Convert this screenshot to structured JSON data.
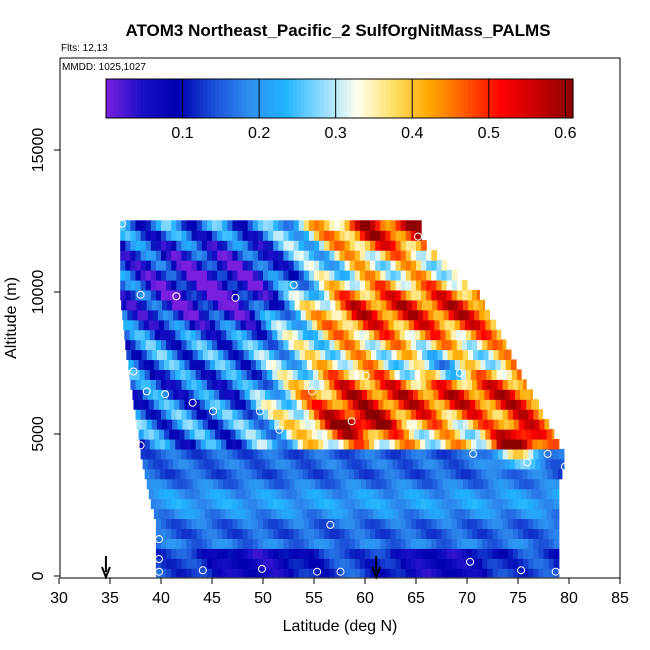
{
  "chart_data": {
    "type": "heatmap",
    "title": "ATOM3 Northeast_Pacific_2 SulfOrgNitMass_PALMS",
    "flights_text": "Flts: 12,13",
    "dates_text": "MMDD: 1025,1027",
    "xlabel": "Latitude (deg N)",
    "ylabel": "Altitude (m)",
    "xlim": [
      30,
      85
    ],
    "ylim": [
      0,
      17500
    ],
    "xticks": [
      30,
      35,
      40,
      45,
      50,
      55,
      60,
      65,
      70,
      75,
      80,
      85
    ],
    "yticks": [
      0,
      5000,
      10000,
      15000
    ],
    "colorbar": {
      "range": [
        0.0,
        0.61
      ],
      "ticks": [
        0.1,
        0.2,
        0.3,
        0.4,
        0.5,
        0.6
      ],
      "tick_labels": [
        "0.1",
        "0.2",
        "0.3",
        "0.4",
        "0.5",
        "0.6"
      ],
      "colors": [
        "#7a1fe0",
        "#1a10c8",
        "#0000b0",
        "#1a4fd8",
        "#2f8ff0",
        "#1fb4ff",
        "#8fdcff",
        "#ffffee",
        "#ffe066",
        "#ffa800",
        "#ff5a00",
        "#ff0000",
        "#c80000",
        "#8b0000"
      ]
    },
    "altitude_bands_m": [
      150,
      450,
      800,
      1150,
      1500,
      1850,
      2200,
      2550,
      2900,
      3250,
      3600,
      3950,
      4300,
      4650,
      5000,
      5350,
      5700,
      6050,
      6400,
      6750,
      7100,
      7450,
      7800,
      8150,
      8500,
      8850,
      9200,
      9550,
      9900,
      10250,
      10600,
      10950,
      11300,
      11650,
      12000,
      12350
    ],
    "band_lat_range_deg": [
      [
        39.5,
        79.0
      ],
      [
        39.5,
        79.0
      ],
      [
        39.5,
        79.0
      ],
      [
        39.5,
        79.0
      ],
      [
        39.5,
        79.0
      ],
      [
        39.5,
        79.0
      ],
      [
        39.3,
        79.0
      ],
      [
        39.0,
        79.0
      ],
      [
        38.8,
        79.0
      ],
      [
        38.6,
        79.0
      ],
      [
        38.4,
        79.3
      ],
      [
        38.2,
        79.5
      ],
      [
        38.0,
        79.5
      ],
      [
        37.9,
        79.0
      ],
      [
        37.8,
        78.5
      ],
      [
        37.6,
        78.0
      ],
      [
        37.5,
        77.4
      ],
      [
        37.3,
        77.0
      ],
      [
        37.2,
        76.4
      ],
      [
        37.0,
        75.8
      ],
      [
        36.9,
        75.3
      ],
      [
        36.8,
        74.8
      ],
      [
        36.6,
        74.3
      ],
      [
        36.5,
        73.8
      ],
      [
        36.4,
        73.3
      ],
      [
        36.3,
        72.8
      ],
      [
        36.2,
        72.2
      ],
      [
        36.1,
        71.7
      ],
      [
        36.0,
        71.2
      ],
      [
        36.0,
        70.0
      ],
      [
        36.0,
        69.0
      ],
      [
        36.0,
        68.0
      ],
      [
        36.0,
        67.0
      ],
      [
        36.0,
        66.0
      ],
      [
        36.0,
        65.5
      ],
      [
        36.0,
        65.5
      ]
    ],
    "data_points": [
      {
        "lat": 36.2,
        "alt_m": 12400
      },
      {
        "lat": 65.2,
        "alt_m": 11950
      },
      {
        "lat": 53.0,
        "alt_m": 10250
      },
      {
        "lat": 72.0,
        "alt_m": 10300
      },
      {
        "lat": 38.0,
        "alt_m": 9900
      },
      {
        "lat": 41.5,
        "alt_m": 9850
      },
      {
        "lat": 47.3,
        "alt_m": 9800
      },
      {
        "lat": 37.3,
        "alt_m": 7200
      },
      {
        "lat": 60.1,
        "alt_m": 7050
      },
      {
        "lat": 69.3,
        "alt_m": 7150
      },
      {
        "lat": 38.6,
        "alt_m": 6500
      },
      {
        "lat": 40.4,
        "alt_m": 6400
      },
      {
        "lat": 54.8,
        "alt_m": 6500
      },
      {
        "lat": 43.1,
        "alt_m": 6100
      },
      {
        "lat": 45.1,
        "alt_m": 5800
      },
      {
        "lat": 49.7,
        "alt_m": 5800
      },
      {
        "lat": 58.7,
        "alt_m": 5450
      },
      {
        "lat": 51.6,
        "alt_m": 5150
      },
      {
        "lat": 38.0,
        "alt_m": 4600
      },
      {
        "lat": 70.6,
        "alt_m": 4300
      },
      {
        "lat": 77.9,
        "alt_m": 4300
      },
      {
        "lat": 75.9,
        "alt_m": 4000
      },
      {
        "lat": 79.6,
        "alt_m": 3850
      },
      {
        "lat": 56.6,
        "alt_m": 1800
      },
      {
        "lat": 39.8,
        "alt_m": 1300
      },
      {
        "lat": 39.8,
        "alt_m": 600
      },
      {
        "lat": 70.3,
        "alt_m": 500
      },
      {
        "lat": 49.9,
        "alt_m": 250
      },
      {
        "lat": 39.8,
        "alt_m": 150
      },
      {
        "lat": 44.1,
        "alt_m": 200
      },
      {
        "lat": 55.3,
        "alt_m": 150
      },
      {
        "lat": 57.6,
        "alt_m": 150
      },
      {
        "lat": 75.3,
        "alt_m": 200
      },
      {
        "lat": 78.7,
        "alt_m": 150
      }
    ],
    "arrows_lat": [
      34.6,
      61.1
    ]
  }
}
